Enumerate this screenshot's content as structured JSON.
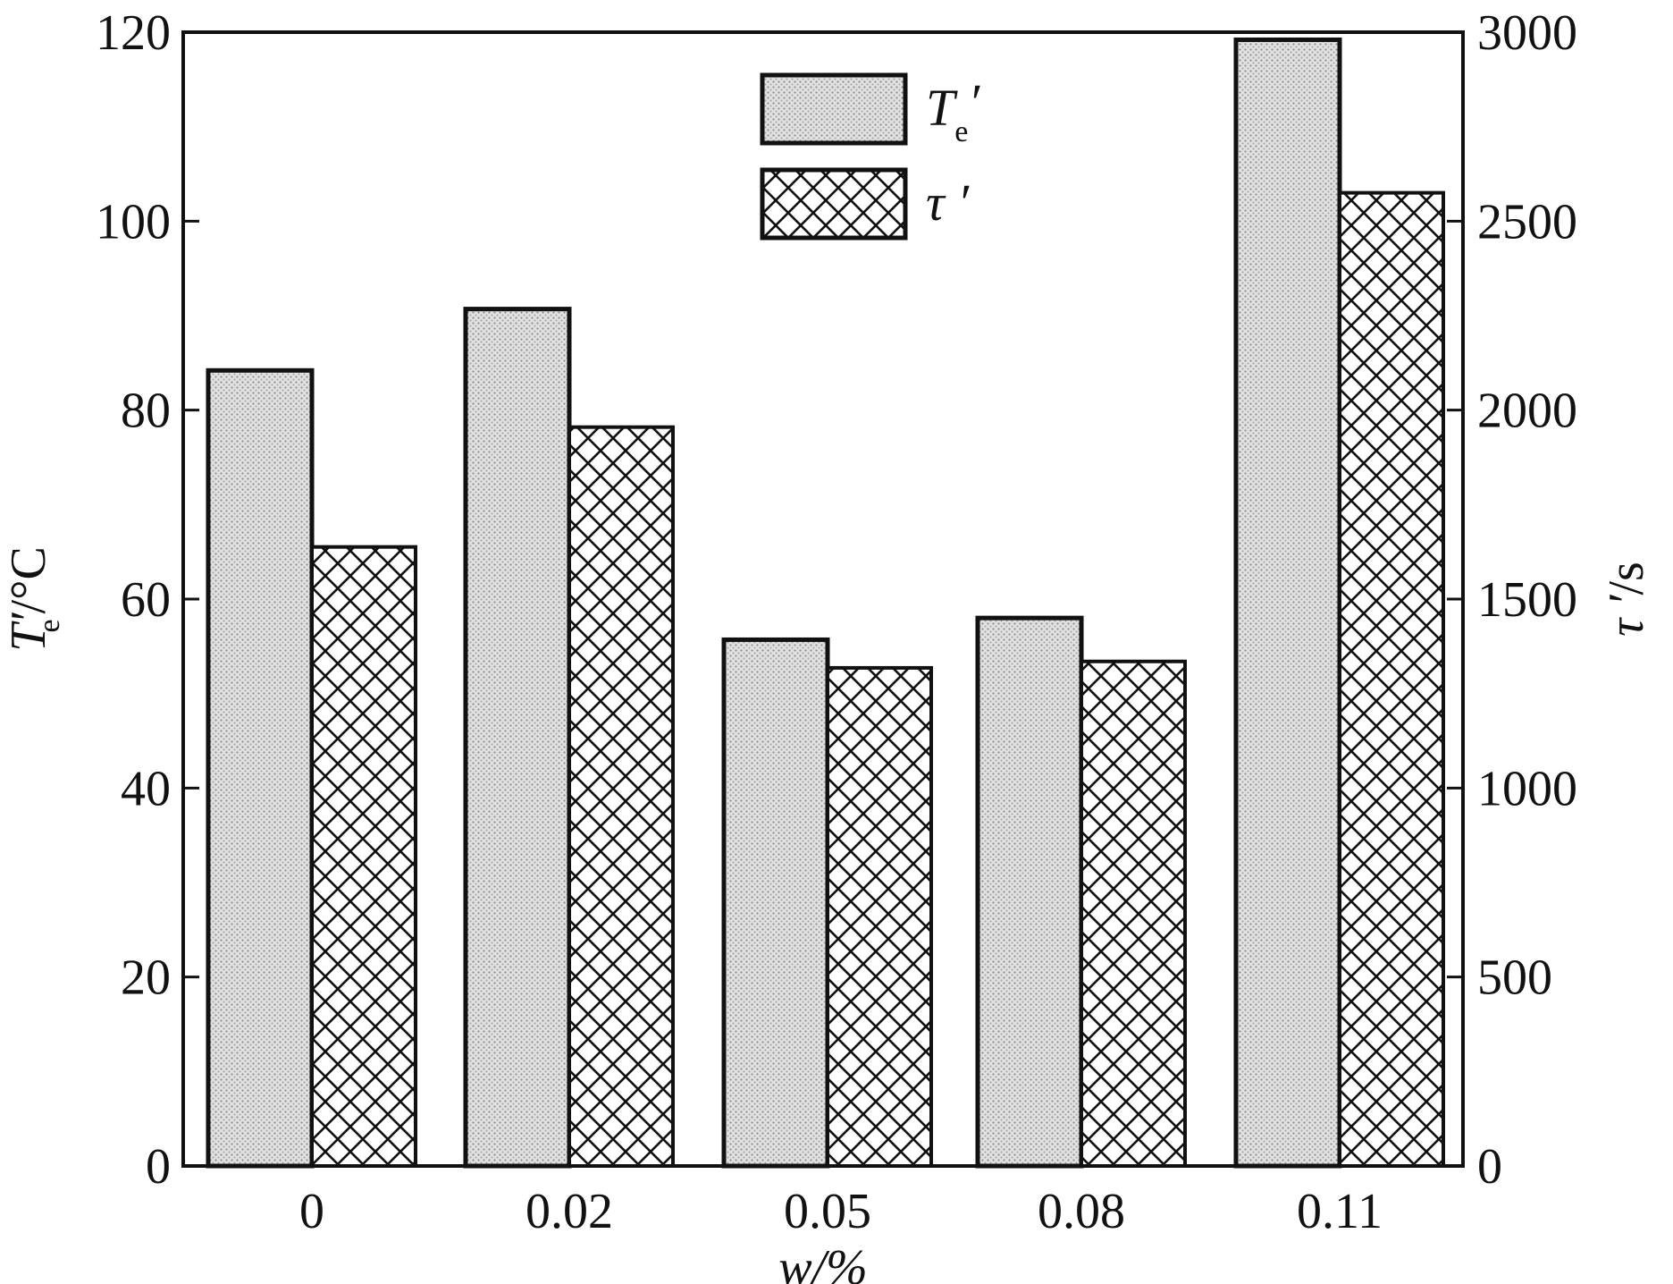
{
  "chart_data": {
    "type": "bar",
    "categories": [
      "0",
      "0.02",
      "0.05",
      "0.08",
      "0.11"
    ],
    "series": [
      {
        "name": "Te′",
        "name_main": "T",
        "name_sub": "e",
        "name_prime": "′",
        "axis": "left",
        "values": [
          84.2,
          90.7,
          55.7,
          58.0,
          119.2
        ],
        "fill": "dotted-gray"
      },
      {
        "name": "τ′",
        "name_main": "τ",
        "name_prime": " ′",
        "axis": "right",
        "values": [
          1638,
          1955,
          1318,
          1335,
          2575
        ],
        "fill": "crosshatch"
      }
    ],
    "xlabel": "w/%",
    "ylabel_left": {
      "main": "T",
      "prime": "′",
      "sub": "e",
      "unit": "/°C"
    },
    "ylabel_right": {
      "main": "τ",
      "prime": " ′",
      "unit": "/s"
    },
    "ylim_left": [
      0,
      120
    ],
    "ylim_right": [
      0,
      3000
    ],
    "yticks_left": [
      0,
      20,
      40,
      60,
      80,
      100,
      120
    ],
    "yticks_right": [
      0,
      500,
      1000,
      1500,
      2000,
      2500,
      3000
    ],
    "grid": false,
    "legend_position": "top-center",
    "colors": {
      "stroke": "#111111",
      "dot_fill": "#d6d6d6",
      "hatch": "#111111"
    }
  }
}
